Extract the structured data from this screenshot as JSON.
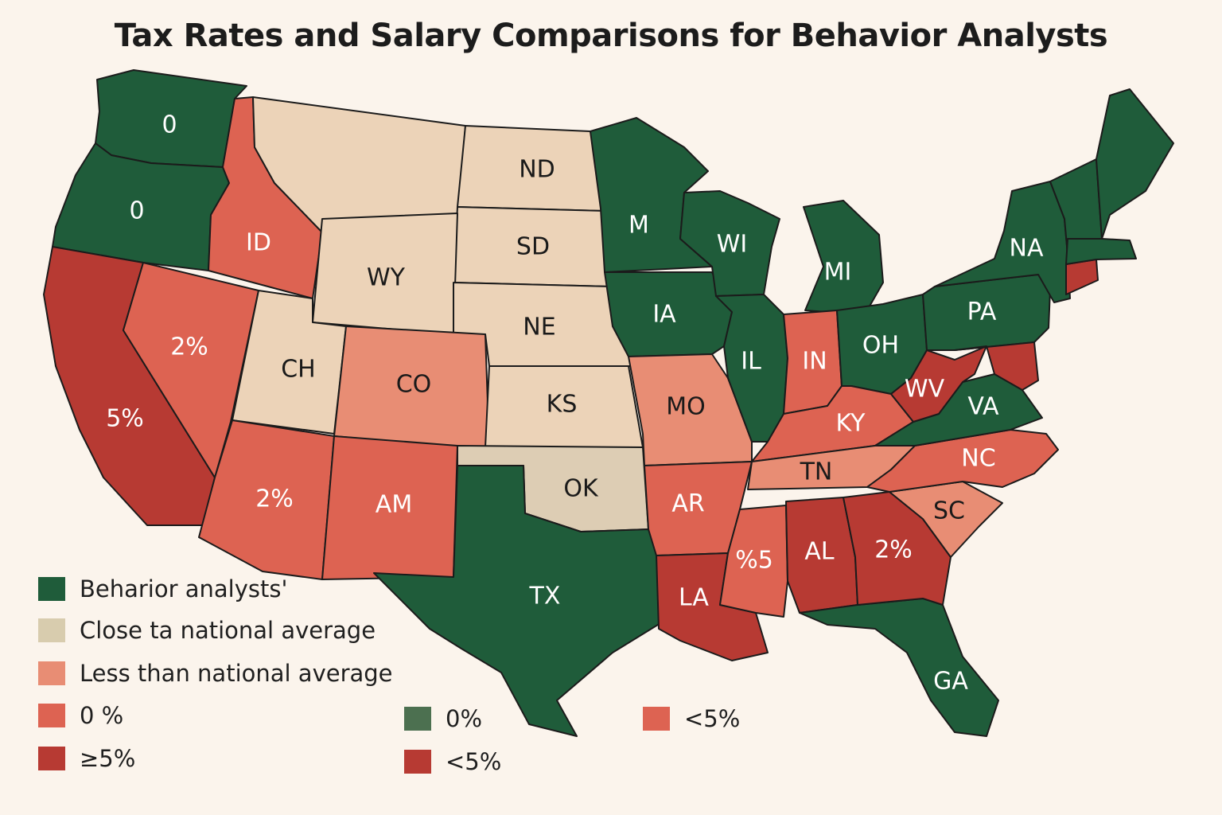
{
  "title": "Tax Rates and Salary Comparisons for Behavior Analysts",
  "colors": {
    "green": "#1f5c3a",
    "tan": "#ecd3b8",
    "gray_tan": "#ddcdb4",
    "salmon": "#e88d74",
    "red": "#dd6352",
    "dark_red": "#b73a33",
    "legend_tan": "#d8ccae",
    "legend_olive": "#4c7050",
    "background": "#fbf4ec"
  },
  "states": [
    {
      "label": "0",
      "color": "green"
    },
    {
      "label": "0",
      "color": "green"
    },
    {
      "label": "ID",
      "color": "red"
    },
    {
      "label": "",
      "color": "tan"
    },
    {
      "label": "ND",
      "color": "tan"
    },
    {
      "label": "SD",
      "color": "tan"
    },
    {
      "label": "WY",
      "color": "tan"
    },
    {
      "label": "NE",
      "color": "tan"
    },
    {
      "label": "5%",
      "color": "dark_red"
    },
    {
      "label": "2%",
      "color": "red"
    },
    {
      "label": "CH",
      "color": "tan"
    },
    {
      "label": "CO",
      "color": "salmon"
    },
    {
      "label": "KS",
      "color": "tan"
    },
    {
      "label": "2%",
      "color": "red"
    },
    {
      "label": "AM",
      "color": "red"
    },
    {
      "label": "OK",
      "color": "gray_tan"
    },
    {
      "label": "TX",
      "color": "green"
    },
    {
      "label": "M",
      "color": "green"
    },
    {
      "label": "IA",
      "color": "green"
    },
    {
      "label": "MO",
      "color": "salmon"
    },
    {
      "label": "AR",
      "color": "red"
    },
    {
      "label": "LA",
      "color": "dark_red"
    },
    {
      "label": "WI",
      "color": "green"
    },
    {
      "label": "IL",
      "color": "green"
    },
    {
      "label": "MI",
      "color": "green"
    },
    {
      "label": "IN",
      "color": "red"
    },
    {
      "label": "OH",
      "color": "green"
    },
    {
      "label": "KY",
      "color": "red"
    },
    {
      "label": "TN",
      "color": "salmon"
    },
    {
      "label": "%5",
      "color": "red"
    },
    {
      "label": "AL",
      "color": "dark_red"
    },
    {
      "label": "GA",
      "color": "green"
    },
    {
      "label": "2%",
      "color": "dark_red"
    },
    {
      "label": "SC",
      "color": "salmon"
    },
    {
      "label": "NC",
      "color": "red"
    },
    {
      "label": "VA",
      "color": "green"
    },
    {
      "label": "WV",
      "color": "dark_red"
    },
    {
      "label": "PA",
      "color": "green"
    },
    {
      "label": "NA",
      "color": "green"
    },
    {
      "label": "",
      "color": "dark_red"
    },
    {
      "label": "",
      "color": "dark_red"
    },
    {
      "label": "",
      "color": "green"
    },
    {
      "label": "",
      "color": "green"
    },
    {
      "label": "",
      "color": "green"
    }
  ],
  "legend": [
    {
      "label": "Beharior analysts'",
      "color": "green"
    },
    {
      "label": "Close ta national average",
      "color": "legend_tan"
    },
    {
      "label": "Less than national average",
      "color": "salmon"
    },
    {
      "label": "0 %",
      "color": "red"
    },
    {
      "label": "≥5%",
      "color": "dark_red"
    },
    {
      "label": "0%",
      "color": "legend_olive"
    },
    {
      "label": "<5%",
      "color": "dark_red"
    },
    {
      "label": "<5%",
      "color": "red"
    }
  ]
}
